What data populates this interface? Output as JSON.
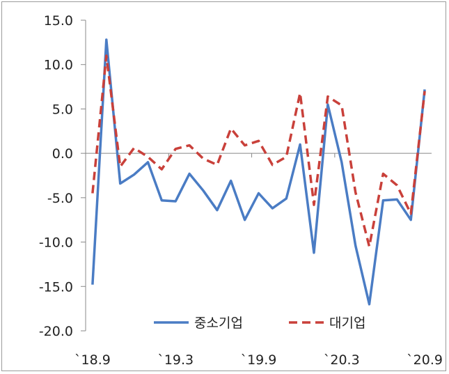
{
  "chart_data": {
    "type": "line",
    "title": "",
    "xlabel": "",
    "ylabel": "",
    "ylim": [
      -20,
      15
    ],
    "y_ticks": [
      "15.0",
      "10.0",
      "5.0",
      "0.0",
      "-5.0",
      "-10.0",
      "-15.0",
      "-20.0"
    ],
    "x_tick_labels": [
      "`18.9",
      "`19.3",
      "`19.9",
      "`20.3",
      "`20.9"
    ],
    "x": [
      "`18.9",
      "`18.10",
      "`18.11",
      "`18.12",
      "`19.1",
      "`19.2",
      "`19.3",
      "`19.4",
      "`19.5",
      "`19.6",
      "`19.7",
      "`19.8",
      "`19.9",
      "`19.10",
      "`19.11",
      "`19.12",
      "`20.1",
      "`20.2",
      "`20.3",
      "`20.4",
      "`20.5",
      "`20.6",
      "`20.7",
      "`20.8",
      "`20.9"
    ],
    "gridlines": false,
    "legend_position": "bottom-center",
    "series": [
      {
        "name": "중소기업",
        "style": "solid",
        "color": "#4a7cc4",
        "values": [
          -14.8,
          12.8,
          -3.4,
          -2.4,
          -1.0,
          -5.3,
          -5.4,
          -2.3,
          -4.2,
          -6.4,
          -3.1,
          -7.5,
          -4.5,
          -6.2,
          -5.1,
          1.0,
          -11.2,
          5.5,
          -1.0,
          -10.4,
          -17.0,
          -5.3,
          -5.2,
          -7.5,
          7.2
        ]
      },
      {
        "name": "대기업",
        "style": "dashed",
        "color": "#c9403a",
        "values": [
          -4.5,
          11.0,
          -1.5,
          0.6,
          -0.4,
          -1.8,
          0.5,
          0.9,
          -0.6,
          -1.3,
          2.8,
          0.9,
          1.4,
          -1.3,
          -0.4,
          6.8,
          -5.8,
          6.4,
          5.4,
          -4.4,
          -10.5,
          -2.3,
          -3.6,
          -6.8,
          7.0
        ]
      }
    ]
  }
}
